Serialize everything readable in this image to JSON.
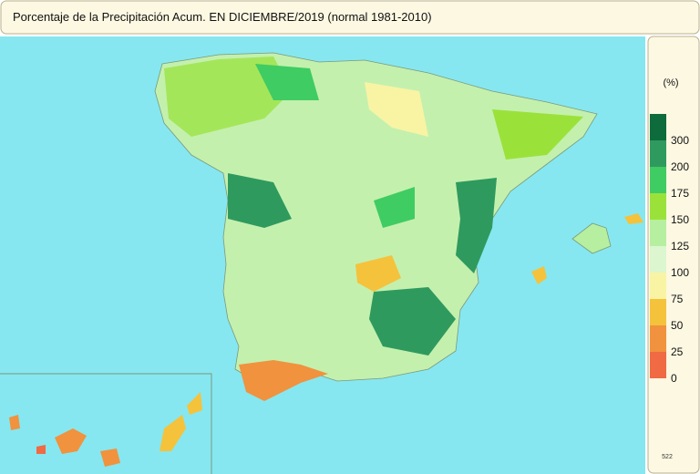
{
  "header": {
    "title": "Porcentaje de la Precipitación Acum. EN  DICIEMBRE/2019  (normal 1981-2010)"
  },
  "legend": {
    "title": "(%)",
    "labels": [
      "300",
      "200",
      "175",
      "150",
      "125",
      "100",
      "75",
      "50",
      "25",
      "0"
    ],
    "colors": [
      "#0d6b3c",
      "#2f9a5e",
      "#3fcc63",
      "#9ae23a",
      "#b6efa0",
      "#dcf6cf",
      "#f8f4a4",
      "#f5c23c",
      "#f1923e",
      "#f06a44"
    ]
  },
  "footer": {
    "code": "522"
  }
}
